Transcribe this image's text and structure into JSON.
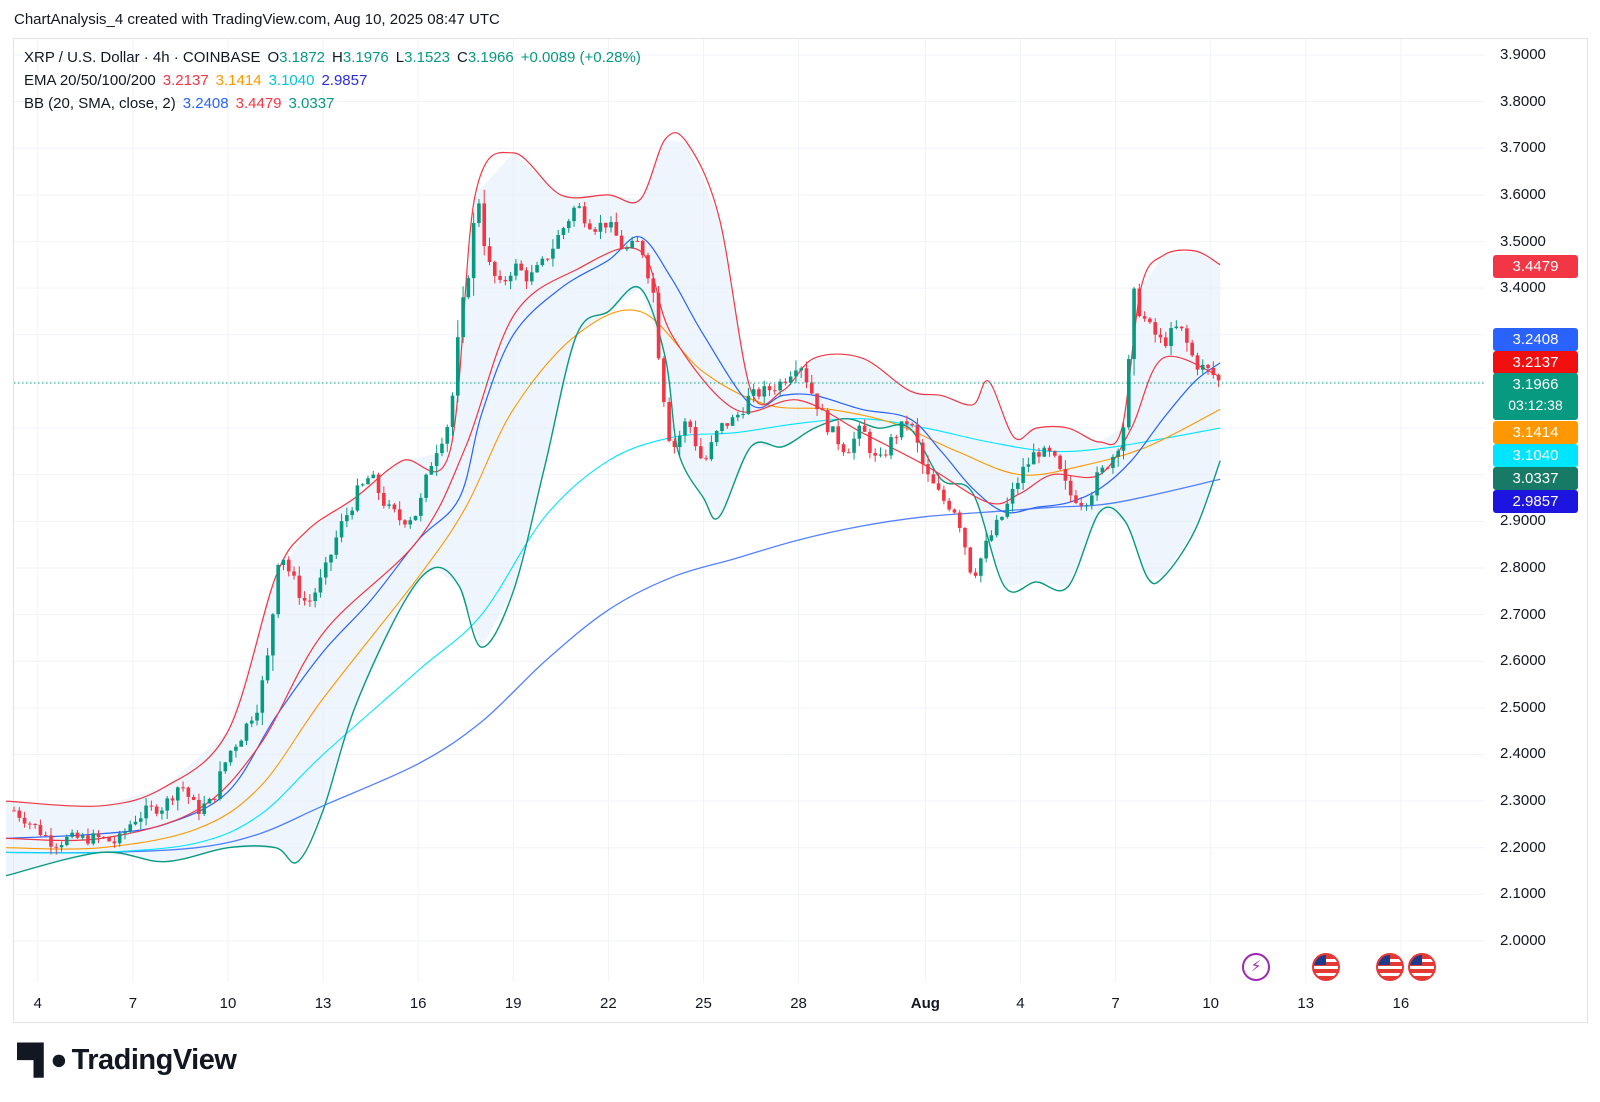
{
  "credit": "ChartAnalysis_4 created with TradingView.com, Aug 10, 2025 08:47 UTC",
  "legend": {
    "symbol": "XRP / U.S. Dollar · 4h · COINBASE",
    "o_label": "O",
    "o_value": "3.1872",
    "h_label": "H",
    "h_value": "3.1976",
    "l_label": "L",
    "l_value": "3.1523",
    "c_label": "C",
    "c_value": "3.1966",
    "change": "+0.0089 (+0.28%)",
    "ema_label": "EMA 20/50/100/200",
    "ema_values": [
      "3.2137",
      "3.1414",
      "3.1040",
      "2.9857"
    ],
    "bb_label": "BB (20, SMA, close, 2)",
    "bb_values": [
      "3.2408",
      "3.4479",
      "3.0337"
    ]
  },
  "badges": {
    "bb_upper": "3.4479",
    "bb_basis": "3.2408",
    "ema20": "3.2137",
    "close": "3.1966",
    "countdown": "03:12:38",
    "ema50": "3.1414",
    "ema100": "3.1040",
    "bb_lower": "3.0337",
    "ema200": "2.9857"
  },
  "colors": {
    "up": "#089981",
    "down": "#f23645",
    "ema20": "#f23645",
    "ema50": "#ff9800",
    "ema100": "#00e5ff",
    "ema200": "#2962ff",
    "bb_basis": "#2962ff",
    "bb_upper": "#f23645",
    "bb_lower": "#089981",
    "bb_fill": "#e3eefa"
  },
  "footer_brand": "TradingView",
  "chart_data": {
    "type": "candlestick",
    "ylim": [
      1.97,
      3.93
    ],
    "y_ticks": [
      "3.9000",
      "3.8000",
      "3.7000",
      "3.6000",
      "3.5000",
      "3.4000",
      "3.3000",
      "3.2000",
      "3.1000",
      "3.0000",
      "2.9000",
      "2.8000",
      "2.7000",
      "2.6000",
      "2.5000",
      "2.4000",
      "2.3000",
      "2.2000",
      "2.1000",
      "2.0000"
    ],
    "x_ticks": [
      {
        "label": "4",
        "day": 4
      },
      {
        "label": "7",
        "day": 7
      },
      {
        "label": "10",
        "day": 10
      },
      {
        "label": "13",
        "day": 13
      },
      {
        "label": "16",
        "day": 16
      },
      {
        "label": "19",
        "day": 19
      },
      {
        "label": "22",
        "day": 22
      },
      {
        "label": "25",
        "day": 25
      },
      {
        "label": "28",
        "day": 28
      },
      {
        "label": "Aug",
        "day": 32
      },
      {
        "label": "4",
        "day": 35
      },
      {
        "label": "7",
        "day": 38
      },
      {
        "label": "10",
        "day": 41
      },
      {
        "label": "13",
        "day": 44
      },
      {
        "label": "16",
        "day": 47
      }
    ],
    "x_unit": "days since Jul 0, 2025",
    "close_path": [
      [
        3.25,
        2.28
      ],
      [
        4.0,
        2.24
      ],
      [
        4.5,
        2.21
      ],
      [
        5.0,
        2.22
      ],
      [
        6.0,
        2.22
      ],
      [
        6.5,
        2.21
      ],
      [
        7.0,
        2.26
      ],
      [
        7.5,
        2.28
      ],
      [
        8.0,
        2.29
      ],
      [
        8.5,
        2.34
      ],
      [
        9.0,
        2.28
      ],
      [
        9.5,
        2.3
      ],
      [
        10.0,
        2.4
      ],
      [
        10.5,
        2.45
      ],
      [
        11.0,
        2.52
      ],
      [
        11.3,
        2.62
      ],
      [
        11.6,
        2.85
      ],
      [
        12.0,
        2.78
      ],
      [
        12.5,
        2.72
      ],
      [
        13.0,
        2.78
      ],
      [
        13.5,
        2.88
      ],
      [
        14.0,
        2.95
      ],
      [
        14.5,
        3.0
      ],
      [
        15.0,
        2.93
      ],
      [
        15.5,
        2.9
      ],
      [
        16.0,
        2.92
      ],
      [
        16.5,
        3.05
      ],
      [
        17.0,
        3.12
      ],
      [
        17.3,
        3.3
      ],
      [
        17.6,
        3.45
      ],
      [
        17.9,
        3.6
      ],
      [
        18.2,
        3.45
      ],
      [
        18.6,
        3.4
      ],
      [
        19.0,
        3.45
      ],
      [
        19.5,
        3.42
      ],
      [
        20.0,
        3.46
      ],
      [
        20.5,
        3.52
      ],
      [
        21.0,
        3.58
      ],
      [
        21.5,
        3.53
      ],
      [
        22.0,
        3.54
      ],
      [
        22.5,
        3.48
      ],
      [
        23.0,
        3.5
      ],
      [
        23.4,
        3.4
      ],
      [
        23.7,
        3.2
      ],
      [
        24.0,
        3.05
      ],
      [
        24.5,
        3.12
      ],
      [
        25.0,
        3.02
      ],
      [
        25.5,
        3.1
      ],
      [
        26.0,
        3.12
      ],
      [
        26.5,
        3.17
      ],
      [
        27.0,
        3.18
      ],
      [
        27.5,
        3.2
      ],
      [
        28.0,
        3.25
      ],
      [
        28.4,
        3.18
      ],
      [
        28.8,
        3.12
      ],
      [
        29.5,
        3.05
      ],
      [
        30.0,
        3.1
      ],
      [
        30.5,
        3.02
      ],
      [
        31.0,
        3.08
      ],
      [
        31.5,
        3.12
      ],
      [
        32.0,
        3.0
      ],
      [
        32.5,
        2.95
      ],
      [
        33.0,
        2.92
      ],
      [
        33.5,
        2.78
      ],
      [
        34.0,
        2.86
      ],
      [
        34.5,
        2.92
      ],
      [
        35.0,
        3.0
      ],
      [
        35.5,
        3.05
      ],
      [
        36.0,
        3.04
      ],
      [
        36.5,
        2.96
      ],
      [
        37.0,
        2.94
      ],
      [
        37.5,
        3.0
      ],
      [
        38.0,
        3.05
      ],
      [
        38.3,
        3.12
      ],
      [
        38.6,
        3.38
      ],
      [
        39.0,
        3.32
      ],
      [
        39.5,
        3.28
      ],
      [
        40.0,
        3.32
      ],
      [
        40.5,
        3.24
      ],
      [
        41.0,
        3.22
      ],
      [
        41.3,
        3.1966
      ]
    ],
    "ema20": [
      [
        3,
        2.22
      ],
      [
        6,
        2.22
      ],
      [
        9,
        2.28
      ],
      [
        11,
        2.42
      ],
      [
        13,
        2.66
      ],
      [
        16,
        2.86
      ],
      [
        17.5,
        3.06
      ],
      [
        19,
        3.34
      ],
      [
        21,
        3.44
      ],
      [
        23,
        3.48
      ],
      [
        24,
        3.3
      ],
      [
        26,
        3.14
      ],
      [
        28,
        3.16
      ],
      [
        30,
        3.09
      ],
      [
        32,
        3.02
      ],
      [
        34,
        2.94
      ],
      [
        35,
        2.96
      ],
      [
        36,
        3.0
      ],
      [
        37.5,
        3.0
      ],
      [
        38.5,
        3.1
      ],
      [
        39.5,
        3.25
      ],
      [
        41.3,
        3.21
      ]
    ],
    "ema50": [
      [
        3,
        2.2
      ],
      [
        6,
        2.2
      ],
      [
        9,
        2.24
      ],
      [
        11,
        2.33
      ],
      [
        13,
        2.52
      ],
      [
        16,
        2.78
      ],
      [
        17.5,
        2.93
      ],
      [
        19,
        3.14
      ],
      [
        21,
        3.3
      ],
      [
        23,
        3.35
      ],
      [
        25,
        3.22
      ],
      [
        27,
        3.15
      ],
      [
        29,
        3.14
      ],
      [
        31,
        3.11
      ],
      [
        33,
        3.05
      ],
      [
        35,
        3.0
      ],
      [
        37,
        3.02
      ],
      [
        39,
        3.06
      ],
      [
        41.3,
        3.14
      ]
    ],
    "ema100": [
      [
        3,
        2.19
      ],
      [
        6,
        2.19
      ],
      [
        9,
        2.21
      ],
      [
        11,
        2.27
      ],
      [
        13,
        2.4
      ],
      [
        16,
        2.58
      ],
      [
        18,
        2.7
      ],
      [
        20,
        2.91
      ],
      [
        22,
        3.03
      ],
      [
        24,
        3.08
      ],
      [
        26,
        3.09
      ],
      [
        28,
        3.11
      ],
      [
        30,
        3.12
      ],
      [
        32,
        3.1
      ],
      [
        34,
        3.07
      ],
      [
        36,
        3.05
      ],
      [
        38,
        3.06
      ],
      [
        41.3,
        3.1
      ]
    ],
    "ema200": [
      [
        3,
        2.19
      ],
      [
        6,
        2.19
      ],
      [
        9,
        2.2
      ],
      [
        11,
        2.23
      ],
      [
        13,
        2.29
      ],
      [
        16,
        2.38
      ],
      [
        18,
        2.47
      ],
      [
        20,
        2.6
      ],
      [
        22,
        2.71
      ],
      [
        24,
        2.78
      ],
      [
        26,
        2.82
      ],
      [
        28,
        2.86
      ],
      [
        30,
        2.89
      ],
      [
        32,
        2.91
      ],
      [
        34,
        2.92
      ],
      [
        36,
        2.93
      ],
      [
        38,
        2.94
      ],
      [
        41.3,
        2.99
      ]
    ],
    "bb_upper": [
      [
        3,
        2.3
      ],
      [
        6,
        2.29
      ],
      [
        8,
        2.33
      ],
      [
        10,
        2.45
      ],
      [
        11.5,
        2.78
      ],
      [
        12.5,
        2.88
      ],
      [
        14,
        2.95
      ],
      [
        15.5,
        3.03
      ],
      [
        17,
        3.05
      ],
      [
        17.8,
        3.6
      ],
      [
        19,
        3.69
      ],
      [
        20.5,
        3.6
      ],
      [
        22,
        3.6
      ],
      [
        23,
        3.59
      ],
      [
        23.8,
        3.72
      ],
      [
        24.5,
        3.71
      ],
      [
        25.5,
        3.55
      ],
      [
        26.5,
        3.18
      ],
      [
        27.5,
        3.18
      ],
      [
        28.5,
        3.25
      ],
      [
        30,
        3.25
      ],
      [
        31.5,
        3.18
      ],
      [
        32.5,
        3.17
      ],
      [
        33.5,
        3.15
      ],
      [
        34,
        3.2
      ],
      [
        34.8,
        3.08
      ],
      [
        35.5,
        3.1
      ],
      [
        36.5,
        3.1
      ],
      [
        37.5,
        3.07
      ],
      [
        38.2,
        3.1
      ],
      [
        38.8,
        3.4
      ],
      [
        39.5,
        3.47
      ],
      [
        40.5,
        3.48
      ],
      [
        41.3,
        3.45
      ]
    ],
    "bb_lower": [
      [
        3,
        2.14
      ],
      [
        6,
        2.19
      ],
      [
        8,
        2.17
      ],
      [
        10,
        2.2
      ],
      [
        11.5,
        2.2
      ],
      [
        12.2,
        2.17
      ],
      [
        13,
        2.28
      ],
      [
        14,
        2.5
      ],
      [
        15.5,
        2.72
      ],
      [
        16.5,
        2.8
      ],
      [
        17.3,
        2.76
      ],
      [
        18,
        2.63
      ],
      [
        19,
        2.75
      ],
      [
        20,
        3.02
      ],
      [
        21,
        3.3
      ],
      [
        22,
        3.35
      ],
      [
        23,
        3.4
      ],
      [
        23.8,
        3.25
      ],
      [
        24.2,
        3.05
      ],
      [
        25,
        2.95
      ],
      [
        25.5,
        2.91
      ],
      [
        26.5,
        3.06
      ],
      [
        27.5,
        3.06
      ],
      [
        28.5,
        3.1
      ],
      [
        29.5,
        3.12
      ],
      [
        30.5,
        3.1
      ],
      [
        31.5,
        3.1
      ],
      [
        32.5,
        2.99
      ],
      [
        33.5,
        2.96
      ],
      [
        34.5,
        2.76
      ],
      [
        35.5,
        2.77
      ],
      [
        36.5,
        2.76
      ],
      [
        37.5,
        2.92
      ],
      [
        38.3,
        2.9
      ],
      [
        39,
        2.78
      ],
      [
        39.5,
        2.78
      ],
      [
        40.5,
        2.88
      ],
      [
        41.3,
        3.03
      ]
    ],
    "bb_basis": [
      [
        3,
        2.22
      ],
      [
        6,
        2.23
      ],
      [
        8,
        2.25
      ],
      [
        10,
        2.32
      ],
      [
        11.5,
        2.48
      ],
      [
        13,
        2.62
      ],
      [
        14.5,
        2.73
      ],
      [
        16,
        2.86
      ],
      [
        17.3,
        2.95
      ],
      [
        18,
        3.13
      ],
      [
        19,
        3.3
      ],
      [
        20.5,
        3.4
      ],
      [
        22,
        3.46
      ],
      [
        23,
        3.51
      ],
      [
        24,
        3.42
      ],
      [
        25,
        3.3
      ],
      [
        26.5,
        3.15
      ],
      [
        27.5,
        3.17
      ],
      [
        28.5,
        3.17
      ],
      [
        30,
        3.14
      ],
      [
        31.5,
        3.12
      ],
      [
        32.5,
        3.05
      ],
      [
        33.5,
        2.97
      ],
      [
        34.5,
        2.92
      ],
      [
        35.5,
        2.93
      ],
      [
        36.5,
        2.94
      ],
      [
        37.5,
        2.97
      ],
      [
        38.5,
        3.03
      ],
      [
        39.5,
        3.12
      ],
      [
        40.5,
        3.2
      ],
      [
        41.3,
        3.24
      ]
    ],
    "last_price": 3.1966,
    "events": [
      {
        "type": "lightning",
        "day": 41.3
      },
      {
        "type": "us-flag",
        "day": 43.3
      },
      {
        "type": "us-flag",
        "day": 45.3
      },
      {
        "type": "us-flag",
        "day": 46.3
      }
    ]
  }
}
